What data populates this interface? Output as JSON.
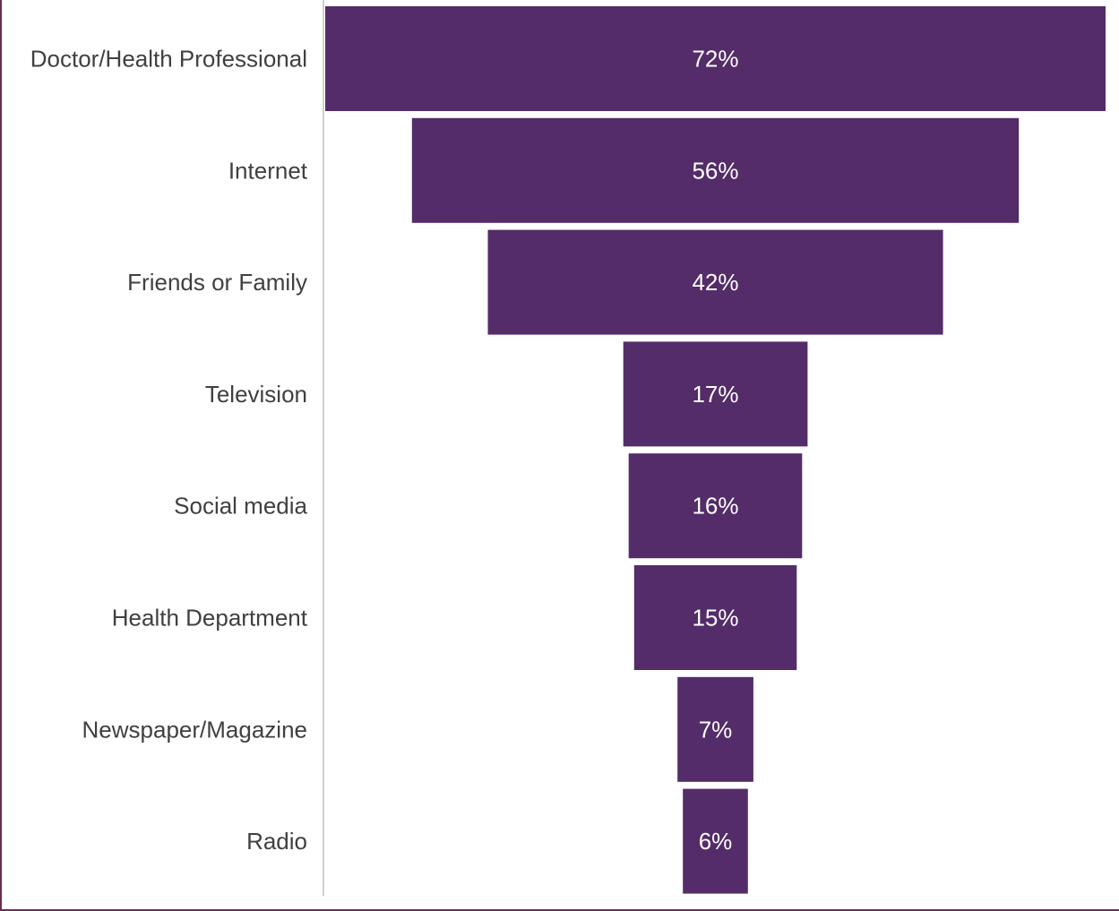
{
  "chart_data": {
    "type": "bar",
    "subtype": "funnel",
    "title": "",
    "xlabel": "",
    "ylabel": "",
    "categories": [
      "Doctor/Health Professional",
      "Internet",
      "Friends or Family",
      "Television",
      "Social media",
      "Health Department",
      "Newspaper/Magazine",
      "Radio"
    ],
    "values": [
      72,
      56,
      42,
      17,
      16,
      15,
      7,
      6
    ],
    "value_labels": [
      "72%",
      "56%",
      "42%",
      "17%",
      "16%",
      "15%",
      "7%",
      "6%"
    ],
    "xlim": [
      0,
      72
    ],
    "grid": false,
    "legend": "none",
    "bar_color": "#532c69",
    "label_color": "#404040",
    "value_label_color": "#ffffff"
  }
}
